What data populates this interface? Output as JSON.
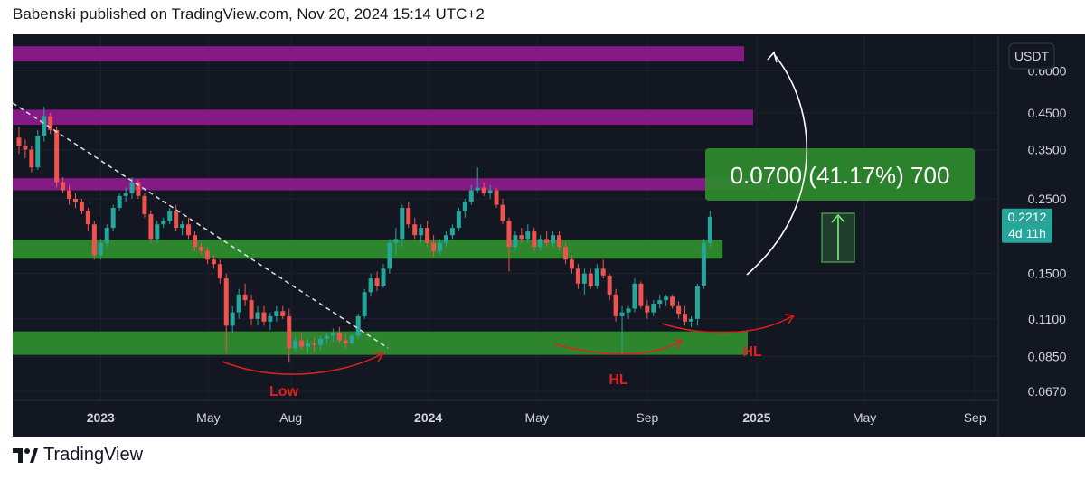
{
  "header": {
    "published_by": "Babenski published on TradingView.com, Nov 20, 2024 15:14 UTC+2"
  },
  "footer": {
    "brand": "TradingView"
  },
  "colors": {
    "background": "#131722",
    "up": "#26a69a",
    "down": "#ef5350",
    "purple_zone": "#8b1a8b",
    "green_zone": "#2e8b2e",
    "annotation_red": "#e0201c"
  },
  "price_axis": {
    "currency": "USDT",
    "current_price": "0.2212",
    "countdown": "4d 11h"
  },
  "measure_label": "0.0700 (41.17%) 700",
  "annotations": {
    "low": "Low",
    "hl1": "HL",
    "hl2": "HL"
  },
  "chart_data": {
    "type": "candlestick",
    "scale": "log",
    "ylim": [
      0.063,
      0.77
    ],
    "y_ticks": [
      "0.6000",
      "0.4500",
      "0.3500",
      "0.2500",
      "0.2212",
      "0.1500",
      "0.1100",
      "0.0850",
      "0.0670"
    ],
    "x_ticks": [
      "2023",
      "May",
      "Aug",
      "2024",
      "May",
      "Sep",
      "2025",
      "May",
      "Sep"
    ],
    "x_tick_dates": [
      "2023-01-01",
      "2023-05-01",
      "2023-08-01",
      "2024-01-01",
      "2024-05-01",
      "2024-09-01",
      "2025-01-01",
      "2025-05-01",
      "2025-09-01"
    ],
    "xlim": [
      "2022-09-25",
      "2025-09-25"
    ],
    "interval": "weekly",
    "zones": [
      {
        "name": "resistance-top",
        "color": "purple",
        "low": 0.64,
        "high": 0.71
      },
      {
        "name": "resistance-mid",
        "color": "purple",
        "low": 0.415,
        "high": 0.46
      },
      {
        "name": "resistance-low",
        "color": "purple",
        "low": 0.265,
        "high": 0.288
      },
      {
        "name": "support-mid",
        "color": "green",
        "low": 0.166,
        "high": 0.189
      },
      {
        "name": "support-low",
        "color": "green",
        "low": 0.086,
        "high": 0.101
      }
    ],
    "candles": [
      [
        0.38,
        0.41,
        0.34,
        0.36
      ],
      [
        0.36,
        0.375,
        0.33,
        0.35
      ],
      [
        0.35,
        0.36,
        0.3,
        0.31
      ],
      [
        0.31,
        0.4,
        0.305,
        0.385
      ],
      [
        0.385,
        0.47,
        0.37,
        0.44
      ],
      [
        0.44,
        0.45,
        0.39,
        0.4
      ],
      [
        0.4,
        0.41,
        0.27,
        0.28
      ],
      [
        0.28,
        0.29,
        0.26,
        0.265
      ],
      [
        0.265,
        0.275,
        0.24,
        0.25
      ],
      [
        0.25,
        0.26,
        0.235,
        0.245
      ],
      [
        0.245,
        0.25,
        0.225,
        0.23
      ],
      [
        0.23,
        0.235,
        0.2,
        0.21
      ],
      [
        0.21,
        0.215,
        0.165,
        0.17
      ],
      [
        0.17,
        0.19,
        0.165,
        0.185
      ],
      [
        0.185,
        0.21,
        0.18,
        0.205
      ],
      [
        0.205,
        0.24,
        0.2,
        0.235
      ],
      [
        0.235,
        0.26,
        0.23,
        0.255
      ],
      [
        0.255,
        0.27,
        0.245,
        0.26
      ],
      [
        0.26,
        0.29,
        0.25,
        0.28
      ],
      [
        0.28,
        0.285,
        0.25,
        0.255
      ],
      [
        0.255,
        0.26,
        0.22,
        0.225
      ],
      [
        0.225,
        0.23,
        0.185,
        0.19
      ],
      [
        0.19,
        0.215,
        0.185,
        0.21
      ],
      [
        0.21,
        0.22,
        0.205,
        0.215
      ],
      [
        0.215,
        0.235,
        0.21,
        0.23
      ],
      [
        0.23,
        0.24,
        0.2,
        0.205
      ],
      [
        0.205,
        0.215,
        0.195,
        0.21
      ],
      [
        0.21,
        0.22,
        0.19,
        0.195
      ],
      [
        0.195,
        0.2,
        0.175,
        0.18
      ],
      [
        0.18,
        0.185,
        0.17,
        0.175
      ],
      [
        0.175,
        0.18,
        0.16,
        0.165
      ],
      [
        0.165,
        0.17,
        0.155,
        0.16
      ],
      [
        0.16,
        0.165,
        0.14,
        0.145
      ],
      [
        0.145,
        0.15,
        0.087,
        0.105
      ],
      [
        0.105,
        0.12,
        0.1,
        0.115
      ],
      [
        0.115,
        0.135,
        0.11,
        0.13
      ],
      [
        0.13,
        0.14,
        0.12,
        0.125
      ],
      [
        0.125,
        0.13,
        0.105,
        0.11
      ],
      [
        0.11,
        0.12,
        0.105,
        0.115
      ],
      [
        0.115,
        0.12,
        0.105,
        0.108
      ],
      [
        0.108,
        0.115,
        0.102,
        0.112
      ],
      [
        0.112,
        0.12,
        0.108,
        0.116
      ],
      [
        0.116,
        0.12,
        0.11,
        0.112
      ],
      [
        0.112,
        0.118,
        0.082,
        0.09
      ],
      [
        0.09,
        0.097,
        0.088,
        0.095
      ],
      [
        0.095,
        0.1,
        0.089,
        0.091
      ],
      [
        0.091,
        0.096,
        0.087,
        0.093
      ],
      [
        0.093,
        0.097,
        0.088,
        0.092
      ],
      [
        0.092,
        0.098,
        0.089,
        0.096
      ],
      [
        0.096,
        0.1,
        0.093,
        0.098
      ],
      [
        0.098,
        0.103,
        0.094,
        0.1
      ],
      [
        0.1,
        0.104,
        0.093,
        0.095
      ],
      [
        0.095,
        0.099,
        0.09,
        0.093
      ],
      [
        0.093,
        0.099,
        0.092,
        0.098
      ],
      [
        0.098,
        0.114,
        0.096,
        0.112
      ],
      [
        0.112,
        0.135,
        0.11,
        0.132
      ],
      [
        0.132,
        0.15,
        0.128,
        0.145
      ],
      [
        0.145,
        0.152,
        0.133,
        0.138
      ],
      [
        0.138,
        0.16,
        0.136,
        0.155
      ],
      [
        0.155,
        0.19,
        0.15,
        0.185
      ],
      [
        0.185,
        0.205,
        0.17,
        0.19
      ],
      [
        0.19,
        0.24,
        0.18,
        0.235
      ],
      [
        0.235,
        0.245,
        0.205,
        0.21
      ],
      [
        0.21,
        0.22,
        0.19,
        0.195
      ],
      [
        0.195,
        0.21,
        0.185,
        0.205
      ],
      [
        0.205,
        0.215,
        0.18,
        0.185
      ],
      [
        0.185,
        0.195,
        0.168,
        0.175
      ],
      [
        0.175,
        0.19,
        0.17,
        0.185
      ],
      [
        0.185,
        0.2,
        0.18,
        0.195
      ],
      [
        0.195,
        0.21,
        0.19,
        0.205
      ],
      [
        0.205,
        0.235,
        0.2,
        0.23
      ],
      [
        0.23,
        0.25,
        0.22,
        0.245
      ],
      [
        0.245,
        0.275,
        0.24,
        0.265
      ],
      [
        0.265,
        0.31,
        0.26,
        0.27
      ],
      [
        0.27,
        0.28,
        0.255,
        0.26
      ],
      [
        0.26,
        0.275,
        0.25,
        0.265
      ],
      [
        0.265,
        0.27,
        0.235,
        0.24
      ],
      [
        0.24,
        0.25,
        0.21,
        0.215
      ],
      [
        0.215,
        0.22,
        0.152,
        0.18
      ],
      [
        0.18,
        0.2,
        0.175,
        0.195
      ],
      [
        0.195,
        0.205,
        0.185,
        0.19
      ],
      [
        0.19,
        0.21,
        0.185,
        0.2
      ],
      [
        0.2,
        0.205,
        0.175,
        0.18
      ],
      [
        0.18,
        0.195,
        0.175,
        0.19
      ],
      [
        0.19,
        0.2,
        0.18,
        0.185
      ],
      [
        0.185,
        0.2,
        0.18,
        0.195
      ],
      [
        0.195,
        0.2,
        0.175,
        0.18
      ],
      [
        0.18,
        0.185,
        0.16,
        0.165
      ],
      [
        0.165,
        0.17,
        0.15,
        0.155
      ],
      [
        0.155,
        0.16,
        0.135,
        0.14
      ],
      [
        0.14,
        0.155,
        0.13,
        0.15
      ],
      [
        0.15,
        0.155,
        0.135,
        0.138
      ],
      [
        0.138,
        0.16,
        0.135,
        0.155
      ],
      [
        0.155,
        0.165,
        0.145,
        0.148
      ],
      [
        0.148,
        0.15,
        0.125,
        0.13
      ],
      [
        0.13,
        0.135,
        0.108,
        0.112
      ],
      [
        0.112,
        0.12,
        0.086,
        0.115
      ],
      [
        0.115,
        0.12,
        0.11,
        0.118
      ],
      [
        0.118,
        0.145,
        0.115,
        0.14
      ],
      [
        0.14,
        0.142,
        0.118,
        0.12
      ],
      [
        0.12,
        0.125,
        0.11,
        0.115
      ],
      [
        0.115,
        0.125,
        0.112,
        0.122
      ],
      [
        0.122,
        0.13,
        0.118,
        0.125
      ],
      [
        0.125,
        0.13,
        0.12,
        0.128
      ],
      [
        0.128,
        0.13,
        0.118,
        0.12
      ],
      [
        0.12,
        0.124,
        0.11,
        0.114
      ],
      [
        0.114,
        0.12,
        0.105,
        0.108
      ],
      [
        0.108,
        0.112,
        0.104,
        0.11
      ],
      [
        0.11,
        0.14,
        0.105,
        0.138
      ],
      [
        0.138,
        0.19,
        0.135,
        0.185
      ],
      [
        0.185,
        0.23,
        0.18,
        0.2212
      ]
    ]
  }
}
